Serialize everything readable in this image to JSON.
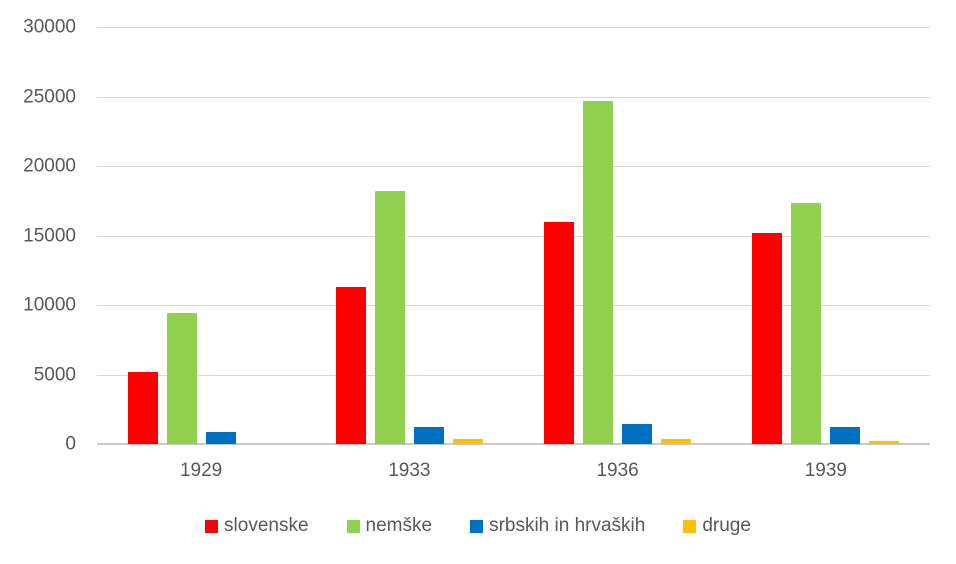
{
  "chart_data": {
    "type": "bar",
    "title": "",
    "xlabel": "",
    "ylabel": "",
    "categories": [
      "1929",
      "1933",
      "1936",
      "1939"
    ],
    "series": [
      {
        "name": "slovenske",
        "color": "#FF0000",
        "values": [
          5200,
          11300,
          16000,
          15200
        ]
      },
      {
        "name": "nemške",
        "color": "#92D050",
        "values": [
          9400,
          18200,
          24700,
          17350
        ]
      },
      {
        "name": "srbskih in hrvaških",
        "color": "#0070C0",
        "values": [
          900,
          1250,
          1450,
          1200
        ]
      },
      {
        "name": "druge",
        "color": "#FFC000",
        "values": [
          0,
          350,
          350,
          200
        ]
      }
    ],
    "y_axis": {
      "min": 0,
      "max": 30000,
      "step": 5000,
      "tick_labels": [
        "0",
        "5000",
        "10000",
        "15000",
        "20000",
        "25000",
        "30000"
      ]
    },
    "grid": true,
    "legend_position": "bottom"
  },
  "colors": {
    "background": "#FFFFFF",
    "gridline": "#D9D9D9",
    "axis_line": "#C9C9C9",
    "text": "#595959"
  }
}
